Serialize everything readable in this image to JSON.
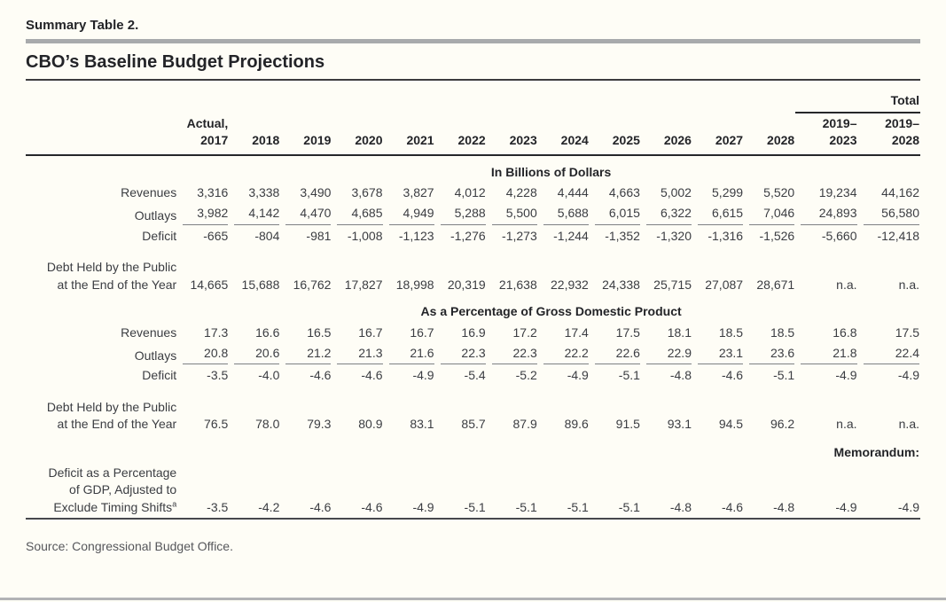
{
  "page": {
    "eyebrow": "Summary Table 2.",
    "title": "CBO’s Baseline Budget Projections",
    "source": "Source: Congressional Budget Office."
  },
  "colors": {
    "gray_rule": "#a8aaac",
    "dark_rule": "#26272a",
    "text": "#3b3d42"
  },
  "table": {
    "header": {
      "actual_label": "Actual,",
      "years": [
        "2017",
        "2018",
        "2019",
        "2020",
        "2021",
        "2022",
        "2023",
        "2024",
        "2025",
        "2026",
        "2027",
        "2028"
      ],
      "total_label": "Total",
      "total_spans": [
        [
          "2019–",
          "2023"
        ],
        [
          "2019–",
          "2028"
        ]
      ]
    },
    "sections": [
      {
        "heading": "In Billions of Dollars",
        "rows": [
          {
            "label_lines": [
              "Revenues"
            ],
            "indent": 0,
            "underline": false,
            "gap_before": false,
            "values": [
              "3,316",
              "3,338",
              "3,490",
              "3,678",
              "3,827",
              "4,012",
              "4,228",
              "4,444",
              "4,663",
              "5,002",
              "5,299",
              "5,520",
              "19,234",
              "44,162"
            ]
          },
          {
            "label_lines": [
              "Outlays"
            ],
            "indent": 0,
            "underline": true,
            "gap_before": false,
            "values": [
              "3,982",
              "4,142",
              "4,470",
              "4,685",
              "4,949",
              "5,288",
              "5,500",
              "5,688",
              "6,015",
              "6,322",
              "6,615",
              "7,046",
              "24,893",
              "56,580"
            ]
          },
          {
            "label_lines": [
              "Deficit"
            ],
            "indent": 1,
            "underline": false,
            "gap_before": false,
            "values": [
              "-665",
              "-804",
              "-981",
              "-1,008",
              "-1,123",
              "-1,276",
              "-1,273",
              "-1,244",
              "-1,352",
              "-1,320",
              "-1,316",
              "-1,526",
              "-5,660",
              "-12,418"
            ]
          },
          {
            "label_lines": [
              "Debt Held by the Public",
              "at the End of the Year"
            ],
            "indent": 0,
            "underline": false,
            "gap_before": true,
            "values": [
              "14,665",
              "15,688",
              "16,762",
              "17,827",
              "18,998",
              "20,319",
              "21,638",
              "22,932",
              "24,338",
              "25,715",
              "27,087",
              "28,671",
              "n.a.",
              "n.a."
            ]
          }
        ]
      },
      {
        "heading": "As a Percentage of Gross Domestic Product",
        "rows": [
          {
            "label_lines": [
              "Revenues"
            ],
            "indent": 0,
            "underline": false,
            "gap_before": false,
            "values": [
              "17.3",
              "16.6",
              "16.5",
              "16.7",
              "16.7",
              "16.9",
              "17.2",
              "17.4",
              "17.5",
              "18.1",
              "18.5",
              "18.5",
              "16.8",
              "17.5"
            ]
          },
          {
            "label_lines": [
              "Outlays"
            ],
            "indent": 0,
            "underline": true,
            "gap_before": false,
            "values": [
              "20.8",
              "20.6",
              "21.2",
              "21.3",
              "21.6",
              "22.3",
              "22.3",
              "22.2",
              "22.6",
              "22.9",
              "23.1",
              "23.6",
              "21.8",
              "22.4"
            ]
          },
          {
            "label_lines": [
              "Deficit"
            ],
            "indent": 1,
            "underline": false,
            "gap_before": false,
            "values": [
              "-3.5",
              "-4.0",
              "-4.6",
              "-4.6",
              "-4.9",
              "-5.4",
              "-5.2",
              "-4.9",
              "-5.1",
              "-4.8",
              "-4.6",
              "-5.1",
              "-4.9",
              "-4.9"
            ]
          },
          {
            "label_lines": [
              "Debt Held by the Public",
              "at the End of the Year"
            ],
            "indent": 0,
            "underline": false,
            "gap_before": true,
            "values": [
              "76.5",
              "78.0",
              "79.3",
              "80.9",
              "83.1",
              "85.7",
              "87.9",
              "89.6",
              "91.5",
              "93.1",
              "94.5",
              "96.2",
              "n.a.",
              "n.a."
            ]
          }
        ]
      },
      {
        "heading": null,
        "memo_label": "Memorandum:",
        "rows": [
          {
            "label_lines": [
              "Deficit as a Percentage",
              "of GDP, Adjusted to",
              "Exclude Timing Shifts"
            ],
            "label_sup": "a",
            "indent": 0,
            "underline": false,
            "gap_before": false,
            "values": [
              "-3.5",
              "-4.2",
              "-4.6",
              "-4.6",
              "-4.9",
              "-5.1",
              "-5.1",
              "-5.1",
              "-5.1",
              "-4.8",
              "-4.6",
              "-4.8",
              "-4.9",
              "-4.9"
            ]
          }
        ]
      }
    ]
  }
}
